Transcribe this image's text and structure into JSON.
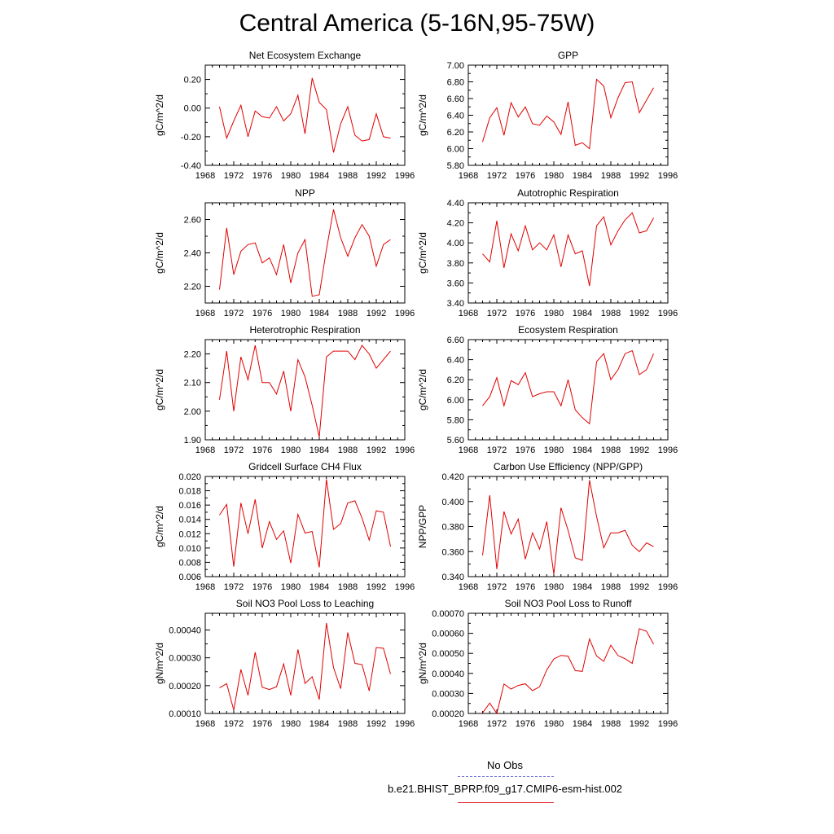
{
  "title": "Central America (5-16N,95-75W)",
  "line_color": "#e00000",
  "obs_color": "#6b6bd6",
  "legend": {
    "obs_label": "No Obs",
    "case_label": "b.e21.BHIST_BPRP.f09_g17.CMIP6-esm-hist.002"
  },
  "chart_data": [
    {
      "type": "line",
      "title": "Net Ecosystem Exchange",
      "ylabel": "gC/m^2/d",
      "xlim": [
        1968,
        1996
      ],
      "xticks": [
        "1968",
        "1972",
        "1976",
        "1980",
        "1984",
        "1988",
        "1992",
        "1996"
      ],
      "ylim": [
        -0.4,
        0.3
      ],
      "yticks": [
        -0.4,
        -0.2,
        0.0,
        0.2
      ],
      "ytick_labels": [
        "-0.40",
        "-0.20",
        "0.00",
        "0.20"
      ],
      "x": [
        1970,
        1971,
        1972,
        1973,
        1974,
        1975,
        1976,
        1977,
        1978,
        1979,
        1980,
        1981,
        1982,
        1983,
        1984,
        1985,
        1986,
        1987,
        1988,
        1989,
        1990,
        1991,
        1992,
        1993,
        1994
      ],
      "y": [
        0.01,
        -0.21,
        -0.09,
        0.02,
        -0.2,
        -0.02,
        -0.06,
        -0.07,
        0.01,
        -0.09,
        -0.04,
        0.09,
        -0.18,
        0.21,
        0.04,
        -0.01,
        -0.31,
        -0.11,
        0.01,
        -0.19,
        -0.23,
        -0.22,
        -0.04,
        -0.2,
        -0.21
      ]
    },
    {
      "type": "line",
      "title": "GPP",
      "ylabel": "gC/m^2/d",
      "xlim": [
        1968,
        1996
      ],
      "xticks": [
        "1968",
        "1972",
        "1976",
        "1980",
        "1984",
        "1988",
        "1992",
        "1996"
      ],
      "ylim": [
        5.8,
        7.0
      ],
      "yticks": [
        5.8,
        6.0,
        6.2,
        6.4,
        6.6,
        6.8,
        7.0
      ],
      "ytick_labels": [
        "5.80",
        "6.00",
        "6.20",
        "6.40",
        "6.60",
        "6.80",
        "7.00"
      ],
      "x": [
        1970,
        1971,
        1972,
        1973,
        1974,
        1975,
        1976,
        1977,
        1978,
        1979,
        1980,
        1981,
        1982,
        1983,
        1984,
        1985,
        1986,
        1987,
        1988,
        1989,
        1990,
        1991,
        1992,
        1993,
        1994
      ],
      "y": [
        6.08,
        6.37,
        6.49,
        6.16,
        6.55,
        6.38,
        6.5,
        6.3,
        6.28,
        6.39,
        6.32,
        6.17,
        6.56,
        6.04,
        6.07,
        6.0,
        6.83,
        6.75,
        6.37,
        6.61,
        6.79,
        6.8,
        6.43,
        6.58,
        6.73
      ]
    },
    {
      "type": "line",
      "title": "NPP",
      "ylabel": "gC/m^2/d",
      "xlim": [
        1968,
        1996
      ],
      "xticks": [
        "1968",
        "1972",
        "1976",
        "1980",
        "1984",
        "1988",
        "1992",
        "1996"
      ],
      "ylim": [
        2.1,
        2.7
      ],
      "yticks": [
        2.2,
        2.4,
        2.6
      ],
      "ytick_labels": [
        "2.20",
        "2.40",
        "2.60"
      ],
      "x": [
        1970,
        1971,
        1972,
        1973,
        1974,
        1975,
        1976,
        1977,
        1978,
        1979,
        1980,
        1981,
        1982,
        1983,
        1984,
        1985,
        1986,
        1987,
        1988,
        1989,
        1990,
        1991,
        1992,
        1993,
        1994
      ],
      "y": [
        2.18,
        2.55,
        2.27,
        2.41,
        2.45,
        2.46,
        2.34,
        2.37,
        2.27,
        2.45,
        2.22,
        2.4,
        2.48,
        2.14,
        2.15,
        2.42,
        2.66,
        2.49,
        2.38,
        2.49,
        2.57,
        2.5,
        2.32,
        2.45,
        2.48
      ]
    },
    {
      "type": "line",
      "title": "Autotrophic Respiration",
      "ylabel": "gC/m^2/d",
      "xlim": [
        1968,
        1996
      ],
      "xticks": [
        "1968",
        "1972",
        "1976",
        "1980",
        "1984",
        "1988",
        "1992",
        "1996"
      ],
      "ylim": [
        3.4,
        4.4
      ],
      "yticks": [
        3.4,
        3.6,
        3.8,
        4.0,
        4.2,
        4.4
      ],
      "ytick_labels": [
        "3.40",
        "3.60",
        "3.80",
        "4.00",
        "4.20",
        "4.40"
      ],
      "x": [
        1970,
        1971,
        1972,
        1973,
        1974,
        1975,
        1976,
        1977,
        1978,
        1979,
        1980,
        1981,
        1982,
        1983,
        1984,
        1985,
        1986,
        1987,
        1988,
        1989,
        1990,
        1991,
        1992,
        1993,
        1994
      ],
      "y": [
        3.89,
        3.81,
        4.22,
        3.75,
        4.09,
        3.92,
        4.17,
        3.93,
        4.0,
        3.93,
        4.08,
        3.76,
        4.08,
        3.89,
        3.92,
        3.57,
        4.17,
        4.26,
        3.98,
        4.12,
        4.23,
        4.3,
        4.1,
        4.12,
        4.25
      ]
    },
    {
      "type": "line",
      "title": "Heterotrophic Respiration",
      "ylabel": "gC/m^2/d",
      "xlim": [
        1968,
        1996
      ],
      "xticks": [
        "1968",
        "1972",
        "1976",
        "1980",
        "1984",
        "1988",
        "1992",
        "1996"
      ],
      "ylim": [
        1.9,
        2.25
      ],
      "yticks": [
        1.9,
        2.0,
        2.1,
        2.2
      ],
      "ytick_labels": [
        "1.90",
        "2.00",
        "2.10",
        "2.20"
      ],
      "x": [
        1970,
        1971,
        1972,
        1973,
        1974,
        1975,
        1976,
        1977,
        1978,
        1979,
        1980,
        1981,
        1982,
        1983,
        1984,
        1985,
        1986,
        1987,
        1988,
        1989,
        1990,
        1991,
        1992,
        1993,
        1994
      ],
      "y": [
        2.04,
        2.21,
        2.0,
        2.19,
        2.11,
        2.23,
        2.1,
        2.1,
        2.06,
        2.14,
        2.0,
        2.18,
        2.12,
        2.02,
        1.91,
        2.19,
        2.21,
        2.21,
        2.21,
        2.18,
        2.23,
        2.2,
        2.15,
        2.18,
        2.21
      ]
    },
    {
      "type": "line",
      "title": "Ecosystem Respiration",
      "ylabel": "gC/m^2/d",
      "xlim": [
        1968,
        1996
      ],
      "xticks": [
        "1968",
        "1972",
        "1976",
        "1980",
        "1984",
        "1988",
        "1992",
        "1996"
      ],
      "ylim": [
        5.6,
        6.6
      ],
      "yticks": [
        5.6,
        5.8,
        6.0,
        6.2,
        6.4,
        6.6
      ],
      "ytick_labels": [
        "5.60",
        "5.80",
        "6.00",
        "6.20",
        "6.40",
        "6.60"
      ],
      "x": [
        1970,
        1971,
        1972,
        1973,
        1974,
        1975,
        1976,
        1977,
        1978,
        1979,
        1980,
        1981,
        1982,
        1983,
        1984,
        1985,
        1986,
        1987,
        1988,
        1989,
        1990,
        1991,
        1992,
        1993,
        1994
      ],
      "y": [
        5.94,
        6.03,
        6.22,
        5.94,
        6.19,
        6.15,
        6.27,
        6.03,
        6.06,
        6.08,
        6.08,
        5.94,
        6.2,
        5.9,
        5.82,
        5.76,
        6.38,
        6.46,
        6.2,
        6.3,
        6.46,
        6.49,
        6.25,
        6.3,
        6.46
      ]
    },
    {
      "type": "line",
      "title": "Gridcell Surface CH4 Flux",
      "ylabel": "gC/m^2/d",
      "xlim": [
        1968,
        1996
      ],
      "xticks": [
        "1968",
        "1972",
        "1976",
        "1980",
        "1984",
        "1988",
        "1992",
        "1996"
      ],
      "ylim": [
        0.006,
        0.02
      ],
      "yticks": [
        0.006,
        0.008,
        0.01,
        0.012,
        0.014,
        0.016,
        0.018,
        0.02
      ],
      "ytick_labels": [
        "0.006",
        "0.008",
        "0.010",
        "0.012",
        "0.014",
        "0.016",
        "0.018",
        "0.020"
      ],
      "x": [
        1970,
        1971,
        1972,
        1973,
        1974,
        1975,
        1976,
        1977,
        1978,
        1979,
        1980,
        1981,
        1982,
        1983,
        1984,
        1985,
        1986,
        1987,
        1988,
        1989,
        1990,
        1991,
        1992,
        1993,
        1994
      ],
      "y": [
        0.0146,
        0.0161,
        0.0074,
        0.0163,
        0.012,
        0.0168,
        0.01,
        0.0137,
        0.0112,
        0.0124,
        0.0079,
        0.0147,
        0.0121,
        0.0123,
        0.0073,
        0.0196,
        0.0126,
        0.0134,
        0.0163,
        0.0166,
        0.0142,
        0.0111,
        0.0152,
        0.015,
        0.0102
      ]
    },
    {
      "type": "line",
      "title": "Carbon Use Efficiency (NPP/GPP)",
      "ylabel": "NPP/GPP",
      "xlim": [
        1968,
        1996
      ],
      "xticks": [
        "1968",
        "1972",
        "1976",
        "1980",
        "1984",
        "1988",
        "1992",
        "1996"
      ],
      "ylim": [
        0.34,
        0.42
      ],
      "yticks": [
        0.34,
        0.36,
        0.38,
        0.4,
        0.42
      ],
      "ytick_labels": [
        "0.340",
        "0.360",
        "0.380",
        "0.400",
        "0.420"
      ],
      "x": [
        1970,
        1971,
        1972,
        1973,
        1974,
        1975,
        1976,
        1977,
        1978,
        1979,
        1980,
        1981,
        1982,
        1983,
        1984,
        1985,
        1986,
        1987,
        1988,
        1989,
        1990,
        1991,
        1992,
        1993,
        1994
      ],
      "y": [
        0.357,
        0.405,
        0.346,
        0.392,
        0.374,
        0.386,
        0.354,
        0.375,
        0.362,
        0.384,
        0.342,
        0.395,
        0.377,
        0.355,
        0.353,
        0.417,
        0.388,
        0.363,
        0.375,
        0.375,
        0.377,
        0.365,
        0.36,
        0.367,
        0.364
      ]
    },
    {
      "type": "line",
      "title": "Soil NO3 Pool Loss to Leaching",
      "ylabel": "gN/m^2/d",
      "xlim": [
        1968,
        1996
      ],
      "xticks": [
        "1968",
        "1972",
        "1976",
        "1980",
        "1984",
        "1988",
        "1992",
        "1996"
      ],
      "ylim": [
        0.0001,
        0.00046
      ],
      "yticks": [
        0.0001,
        0.0002,
        0.0003,
        0.0004
      ],
      "ytick_labels": [
        "0.00010",
        "0.00020",
        "0.00030",
        "0.00040"
      ],
      "x": [
        1970,
        1971,
        1972,
        1973,
        1974,
        1975,
        1976,
        1977,
        1978,
        1979,
        1980,
        1981,
        1982,
        1983,
        1984,
        1985,
        1986,
        1987,
        1988,
        1989,
        1990,
        1991,
        1992,
        1993,
        1994
      ],
      "y": [
        0.000192,
        0.000207,
        0.000112,
        0.000258,
        0.000165,
        0.00032,
        0.000194,
        0.000186,
        0.000196,
        0.000278,
        0.000165,
        0.00033,
        0.000208,
        0.000232,
        0.00015,
        0.000425,
        0.000265,
        0.000189,
        0.000391,
        0.00028,
        0.000276,
        0.000181,
        0.000337,
        0.000334,
        0.000242
      ]
    },
    {
      "type": "line",
      "title": "Soil NO3 Pool Loss to Runoff",
      "ylabel": "gN/m^2/d",
      "xlim": [
        1968,
        1996
      ],
      "xticks": [
        "1968",
        "1972",
        "1976",
        "1980",
        "1984",
        "1988",
        "1992",
        "1996"
      ],
      "ylim": [
        0.0002,
        0.0007
      ],
      "yticks": [
        0.0002,
        0.0003,
        0.0004,
        0.0005,
        0.0006,
        0.0007
      ],
      "ytick_labels": [
        "0.00020",
        "0.00030",
        "0.00040",
        "0.00050",
        "0.00060",
        "0.00070"
      ],
      "x": [
        1970,
        1971,
        1972,
        1973,
        1974,
        1975,
        1976,
        1977,
        1978,
        1979,
        1980,
        1981,
        1982,
        1983,
        1984,
        1985,
        1986,
        1987,
        1988,
        1989,
        1990,
        1991,
        1992,
        1993,
        1994
      ],
      "y": [
        0.000203,
        0.000252,
        0.0002,
        0.000347,
        0.000322,
        0.00034,
        0.000348,
        0.000314,
        0.000333,
        0.000417,
        0.000472,
        0.00049,
        0.000486,
        0.000414,
        0.00041,
        0.000572,
        0.000487,
        0.00046,
        0.000541,
        0.000489,
        0.000473,
        0.00045,
        0.000623,
        0.00061,
        0.000546
      ]
    }
  ]
}
